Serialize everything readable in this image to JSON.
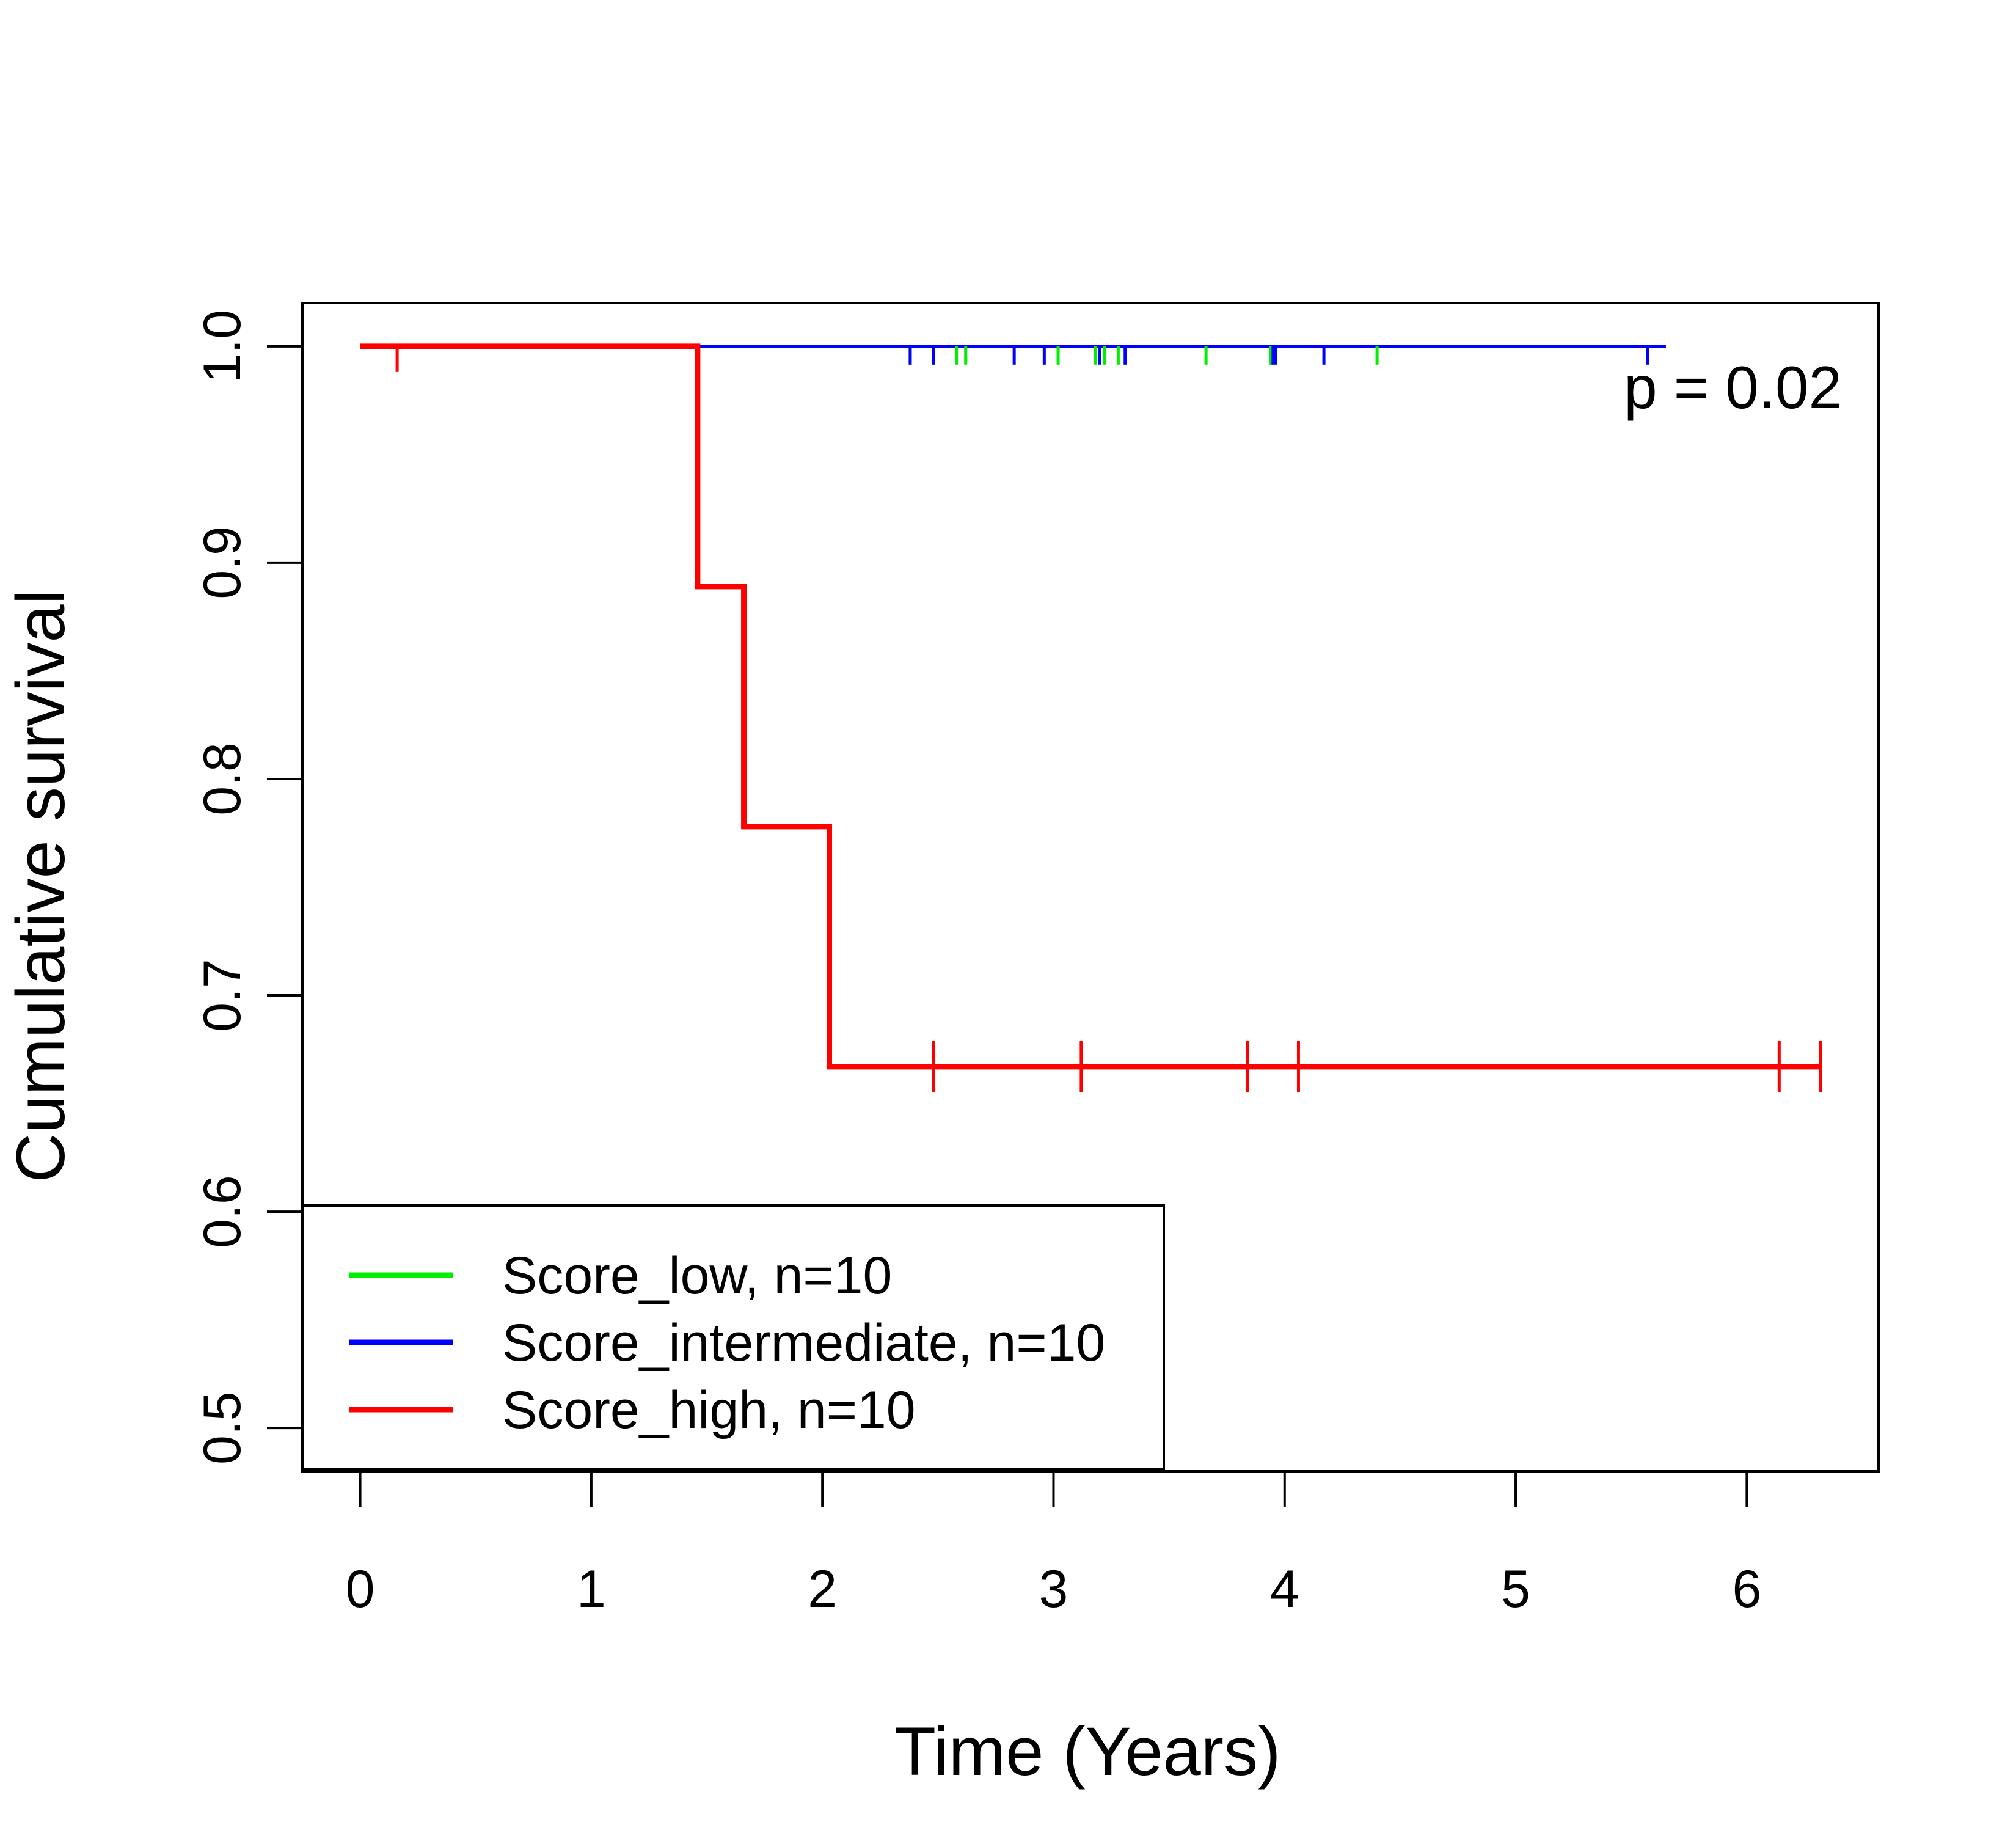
{
  "chart_data": {
    "type": "line",
    "subtype": "kaplan-meier step",
    "xlabel": "Time (Years)",
    "ylabel": "Cumulative survival",
    "xlim": [
      -0.25,
      6.57
    ],
    "ylim": [
      0.48,
      1.02
    ],
    "xticks": [
      0,
      1,
      2,
      3,
      4,
      5,
      6
    ],
    "yticks": [
      0.5,
      0.6,
      0.7,
      0.8,
      0.9,
      1.0
    ],
    "ytick_labels": [
      "0.5",
      "0.6",
      "0.7",
      "0.8",
      "0.9",
      "1.0"
    ],
    "annotation": "p = 0.02",
    "annotation_position": "top-right",
    "legend_position": "bottom-left",
    "grid": false,
    "series": [
      {
        "name": "Score_low, n=10",
        "color": "#00ee00",
        "steps": [
          [
            0,
            1.0
          ],
          [
            4.4,
            1.0
          ]
        ],
        "censor_times": [
          2.38,
          2.58,
          2.62,
          3.02,
          3.18,
          3.22,
          3.28,
          3.66,
          3.94,
          4.4
        ],
        "censor_values": [
          1.0,
          1.0,
          1.0,
          1.0,
          1.0,
          1.0,
          1.0,
          1.0,
          1.0,
          1.0
        ]
      },
      {
        "name": "Score_intermediate, n=10",
        "color": "#0000ff",
        "steps": [
          [
            0,
            1.0
          ],
          [
            5.65,
            1.0
          ]
        ],
        "censor_times": [
          2.38,
          2.48,
          2.83,
          2.96,
          3.2,
          3.31,
          3.95,
          3.96,
          4.17,
          5.57
        ],
        "censor_values": [
          1.0,
          1.0,
          1.0,
          1.0,
          1.0,
          1.0,
          1.0,
          1.0,
          1.0,
          1.0
        ]
      },
      {
        "name": "Score_high, n=10",
        "color": "#ff0000",
        "steps": [
          [
            0,
            1.0
          ],
          [
            1.46,
            0.889
          ],
          [
            1.66,
            0.778
          ],
          [
            2.03,
            0.667
          ],
          [
            6.32,
            0.667
          ]
        ],
        "censor_times": [
          0.16,
          2.48,
          3.12,
          3.84,
          4.06,
          6.14,
          6.32
        ],
        "censor_values": [
          1.0,
          0.667,
          0.667,
          0.667,
          0.667,
          0.667,
          0.667
        ]
      }
    ]
  }
}
